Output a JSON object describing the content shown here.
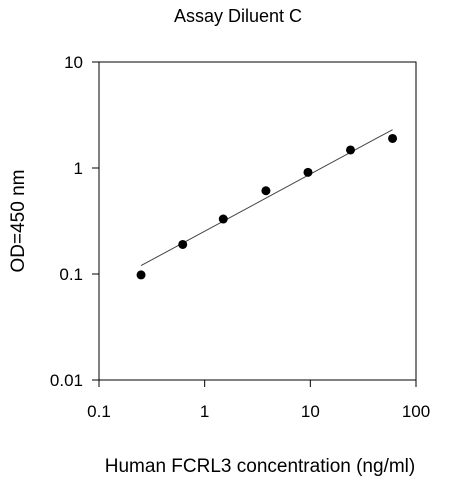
{
  "chart_data": {
    "type": "scatter",
    "title": "Assay Diluent C",
    "xlabel": "Human FCRL3 concentration (ng/ml)",
    "ylabel": "OD=450 nm",
    "x_scale": "log",
    "y_scale": "log",
    "xlim": [
      0.1,
      100
    ],
    "ylim": [
      0.01,
      10
    ],
    "x_ticks": [
      "0.1",
      "1",
      "10",
      "100"
    ],
    "y_ticks": [
      "0.01",
      "0.1",
      "1",
      "10"
    ],
    "grid": false,
    "legend": "none",
    "colors": {
      "points": "#000000",
      "fit_line": "#444444",
      "frame": "#000000"
    },
    "series": [
      {
        "x": [
          0.25,
          0.62,
          1.5,
          3.8,
          9.5,
          24,
          60
        ],
        "y": [
          0.098,
          0.19,
          0.33,
          0.61,
          0.91,
          1.48,
          1.9
        ]
      }
    ],
    "fit_line": {
      "x": [
        0.25,
        60
      ],
      "y": [
        0.12,
        2.3
      ]
    }
  }
}
